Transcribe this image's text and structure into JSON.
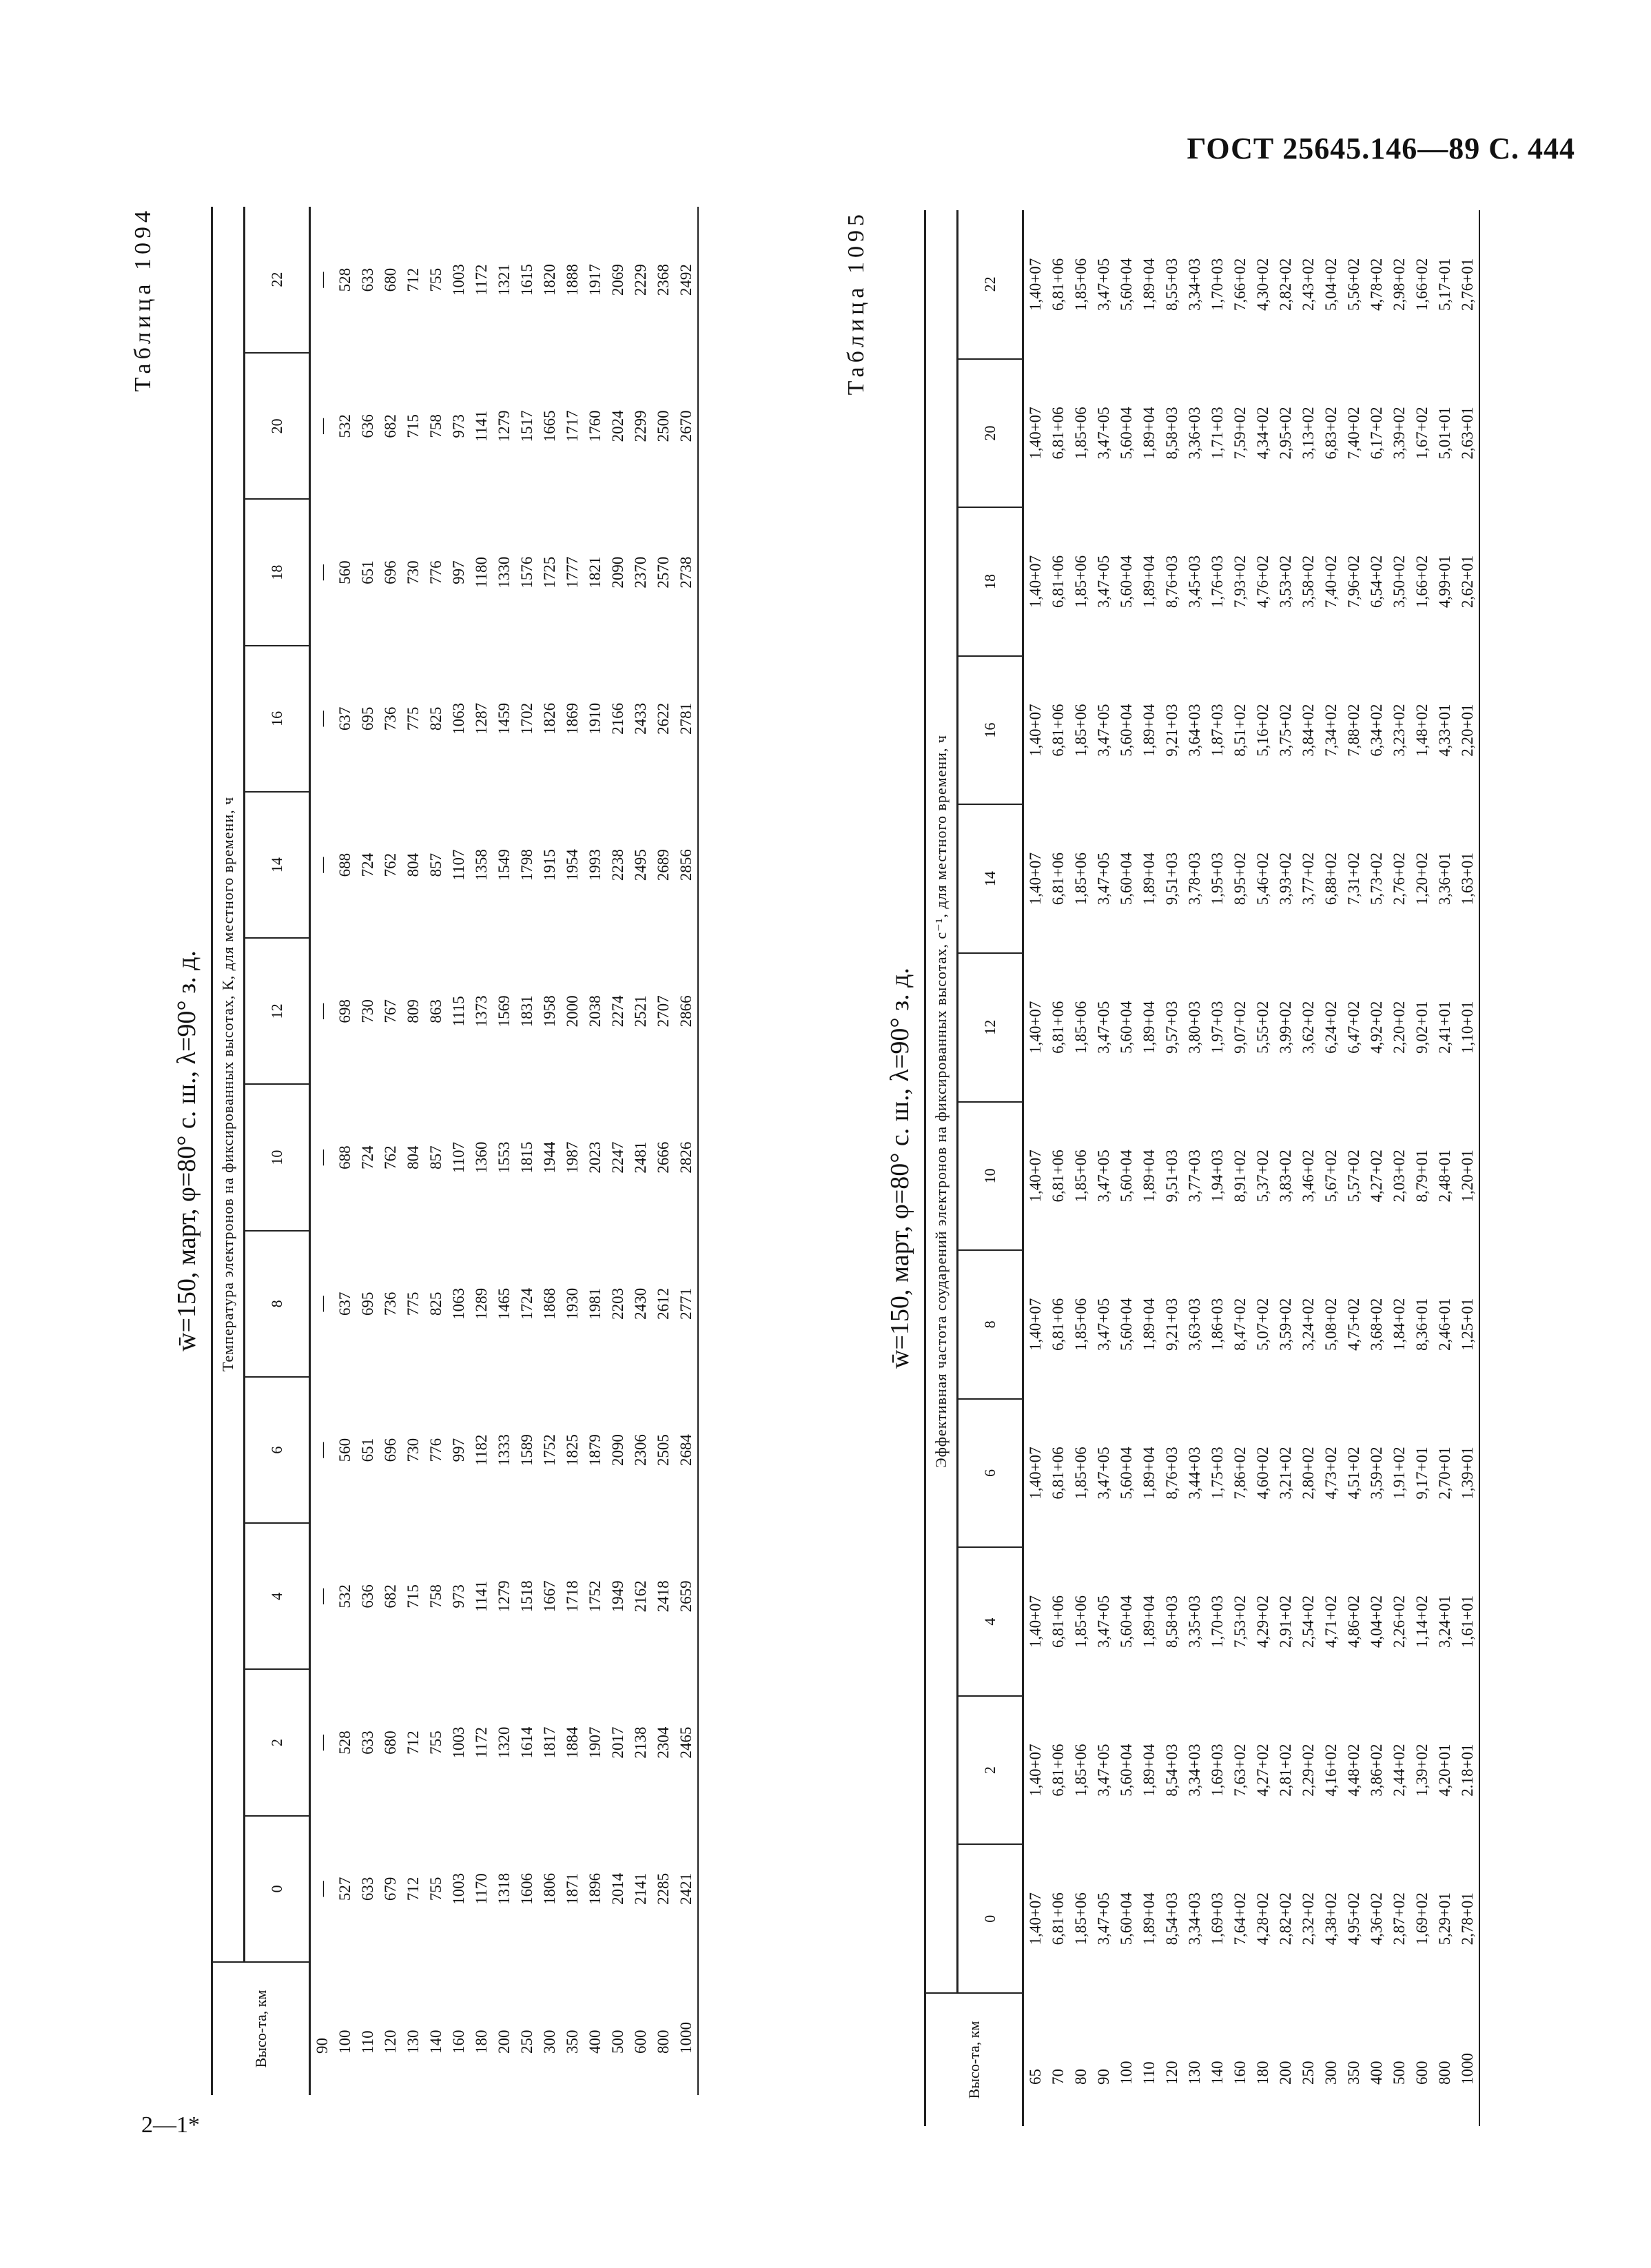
{
  "header": {
    "title": "ГОСТ 25645.146—89 С. 444"
  },
  "footer": {
    "text": "2—1*"
  },
  "tables": [
    {
      "caption": "Таблица 1094",
      "title": "w̄=150, март, φ=80° с. ш., λ=90° з. д.",
      "subtitle": "Температура электронов на фиксированных высотах, К, для местного времени, ч",
      "row_header": "Высо-та, км",
      "rows": [
        "90",
        "100",
        "110",
        "120",
        "130",
        "140",
        "160",
        "180",
        "200",
        "250",
        "300",
        "350",
        "400",
        "500",
        "600",
        "800",
        "1000"
      ],
      "columns": [
        {
          "header": "0",
          "values": [
            "—",
            "527",
            "633",
            "679",
            "712",
            "755",
            "1003",
            "1170",
            "1318",
            "1606",
            "1806",
            "1871",
            "1896",
            "2014",
            "2141",
            "2285",
            "2421"
          ]
        },
        {
          "header": "2",
          "values": [
            "—",
            "528",
            "633",
            "680",
            "712",
            "755",
            "1003",
            "1172",
            "1320",
            "1614",
            "1817",
            "1884",
            "1907",
            "2017",
            "2138",
            "2304",
            "2465"
          ]
        },
        {
          "header": "4",
          "values": [
            "—",
            "532",
            "636",
            "682",
            "715",
            "758",
            "973",
            "1141",
            "1279",
            "1518",
            "1667",
            "1718",
            "1752",
            "1949",
            "2162",
            "2418",
            "2659"
          ]
        },
        {
          "header": "6",
          "values": [
            "—",
            "560",
            "651",
            "696",
            "730",
            "776",
            "997",
            "1182",
            "1333",
            "1589",
            "1752",
            "1825",
            "1879",
            "2090",
            "2306",
            "2505",
            "2684"
          ]
        },
        {
          "header": "8",
          "values": [
            "—",
            "637",
            "695",
            "736",
            "775",
            "825",
            "1063",
            "1289",
            "1465",
            "1724",
            "1868",
            "1930",
            "1981",
            "2203",
            "2430",
            "2612",
            "2771"
          ]
        },
        {
          "header": "10",
          "values": [
            "—",
            "688",
            "724",
            "762",
            "804",
            "857",
            "1107",
            "1360",
            "1553",
            "1815",
            "1944",
            "1987",
            "2023",
            "2247",
            "2481",
            "2666",
            "2826"
          ]
        },
        {
          "header": "12",
          "values": [
            "—",
            "698",
            "730",
            "767",
            "809",
            "863",
            "1115",
            "1373",
            "1569",
            "1831",
            "1958",
            "2000",
            "2038",
            "2274",
            "2521",
            "2707",
            "2866"
          ]
        },
        {
          "header": "14",
          "values": [
            "—",
            "688",
            "724",
            "762",
            "804",
            "857",
            "1107",
            "1358",
            "1549",
            "1798",
            "1915",
            "1954",
            "1993",
            "2238",
            "2495",
            "2689",
            "2856"
          ]
        },
        {
          "header": "16",
          "values": [
            "—",
            "637",
            "695",
            "736",
            "775",
            "825",
            "1063",
            "1287",
            "1459",
            "1702",
            "1826",
            "1869",
            "1910",
            "2166",
            "2433",
            "2622",
            "2781"
          ]
        },
        {
          "header": "18",
          "values": [
            "—",
            "560",
            "651",
            "696",
            "730",
            "776",
            "997",
            "1180",
            "1330",
            "1576",
            "1725",
            "1777",
            "1821",
            "2090",
            "2370",
            "2570",
            "2738"
          ]
        },
        {
          "header": "20",
          "values": [
            "—",
            "532",
            "636",
            "682",
            "715",
            "758",
            "973",
            "1141",
            "1279",
            "1517",
            "1665",
            "1717",
            "1760",
            "2024",
            "2299",
            "2500",
            "2670"
          ]
        },
        {
          "header": "22",
          "values": [
            "—",
            "528",
            "633",
            "680",
            "712",
            "755",
            "1003",
            "1172",
            "1321",
            "1615",
            "1820",
            "1888",
            "1917",
            "2069",
            "2229",
            "2368",
            "2492"
          ]
        }
      ]
    },
    {
      "caption": "Таблица 1095",
      "title": "w̄=150, март, φ=80° с. ш., λ=90° з. д.",
      "subtitle": "Эффективная частота соударений электронов на фиксированных высотах, с⁻¹, для местного времени, ч",
      "row_header": "Высо-та, км",
      "rows": [
        "65",
        "70",
        "80",
        "90",
        "100",
        "110",
        "120",
        "130",
        "140",
        "160",
        "180",
        "200",
        "250",
        "300",
        "350",
        "400",
        "500",
        "600",
        "800",
        "1000"
      ],
      "columns": [
        {
          "header": "0",
          "values": [
            "1,40+07",
            "6,81+06",
            "1,85+06",
            "3,47+05",
            "5,60+04",
            "1,89+04",
            "8,54+03",
            "3,34+03",
            "1,69+03",
            "7,64+02",
            "4,28+02",
            "2,82+02",
            "2,32+02",
            "4,38+02",
            "4,95+02",
            "4,36+02",
            "2,87+02",
            "1,69+02",
            "5,29+01",
            "2,78+01"
          ]
        },
        {
          "header": "2",
          "values": [
            "1,40+07",
            "6,81+06",
            "1,85+06",
            "3,47+05",
            "5,60+04",
            "1,89+04",
            "8,54+03",
            "3,34+03",
            "1,69+03",
            "7,63+02",
            "4,27+02",
            "2,81+02",
            "2,29+02",
            "4,16+02",
            "4,48+02",
            "3,86+02",
            "2,44+02",
            "1,39+02",
            "4,20+01",
            "2.18+01"
          ]
        },
        {
          "header": "4",
          "values": [
            "1,40+07",
            "6,81+06",
            "1,85+06",
            "3,47+05",
            "5,60+04",
            "1,89+04",
            "8,58+03",
            "3,35+03",
            "1,70+03",
            "7,53+02",
            "4,29+02",
            "2,91+02",
            "2,54+02",
            "4,71+02",
            "4,86+02",
            "4,04+02",
            "2,26+02",
            "1,14+02",
            "3,24+01",
            "1,61+01"
          ]
        },
        {
          "header": "6",
          "values": [
            "1,40+07",
            "6,81+06",
            "1,85+06",
            "3,47+05",
            "5,60+04",
            "1,89+04",
            "8,76+03",
            "3,44+03",
            "1,75+03",
            "7,86+02",
            "4,60+02",
            "3,21+02",
            "2,80+02",
            "4,73+02",
            "4,51+02",
            "3,59+02",
            "1,91+02",
            "9,17+01",
            "2,70+01",
            "1,39+01"
          ]
        },
        {
          "header": "8",
          "values": [
            "1,40+07",
            "6,81+06",
            "1,85+06",
            "3,47+05",
            "5,60+04",
            "1,89+04",
            "9,21+03",
            "3,63+03",
            "1,86+03",
            "8,47+02",
            "5,07+02",
            "3,59+02",
            "3,24+02",
            "5,08+02",
            "4,75+02",
            "3,68+02",
            "1,84+02",
            "8,36+01",
            "2,46+01",
            "1,25+01"
          ]
        },
        {
          "header": "10",
          "values": [
            "1,40+07",
            "6,81+06",
            "1,85+06",
            "3,47+05",
            "5,60+04",
            "1,89+04",
            "9,51+03",
            "3,77+03",
            "1,94+03",
            "8,91+02",
            "5,37+02",
            "3,83+02",
            "3,46+02",
            "5,67+02",
            "5,57+02",
            "4,27+02",
            "2,03+02",
            "8,79+01",
            "2,48+01",
            "1,20+01"
          ]
        },
        {
          "header": "12",
          "values": [
            "1,40+07",
            "6,81+06",
            "1,85+06",
            "3,47+05",
            "5,60+04",
            "1,89+04",
            "9,57+03",
            "3,80+03",
            "1,97+03",
            "9,07+02",
            "5,55+02",
            "3,99+02",
            "3,62+02",
            "6,24+02",
            "6,47+02",
            "4,92+02",
            "2,20+02",
            "9,02+01",
            "2,41+01",
            "1,10+01"
          ]
        },
        {
          "header": "14",
          "values": [
            "1,40+07",
            "6,81+06",
            "1,85+06",
            "3,47+05",
            "5,60+04",
            "1,89+04",
            "9,51+03",
            "3,78+03",
            "1,95+03",
            "8,95+02",
            "5,46+02",
            "3,93+02",
            "3,77+02",
            "6,88+02",
            "7,31+02",
            "5,73+02",
            "2,76+02",
            "1,20+02",
            "3,36+01",
            "1,63+01"
          ]
        },
        {
          "header": "16",
          "values": [
            "1,40+07",
            "6,81+06",
            "1,85+06",
            "3,47+05",
            "5,60+04",
            "1,89+04",
            "9,21+03",
            "3,64+03",
            "1,87+03",
            "8,51+02",
            "5,16+02",
            "3,75+02",
            "3,84+02",
            "7,34+02",
            "7,88+02",
            "6,34+02",
            "3,23+02",
            "1,48+02",
            "4,33+01",
            "2,20+01"
          ]
        },
        {
          "header": "18",
          "values": [
            "1,40+07",
            "6,81+06",
            "1,85+06",
            "3,47+05",
            "5,60+04",
            "1,89+04",
            "8,76+03",
            "3,45+03",
            "1,76+03",
            "7,93+02",
            "4,76+02",
            "3,53+02",
            "3,58+02",
            "7,40+02",
            "7,96+02",
            "6,54+02",
            "3,50+02",
            "1,66+02",
            "4,99+01",
            "2,62+01"
          ]
        },
        {
          "header": "20",
          "values": [
            "1,40+07",
            "6,81+06",
            "1,85+06",
            "3,47+05",
            "5,60+04",
            "1,89+04",
            "8,58+03",
            "3,36+03",
            "1,71+03",
            "7,59+02",
            "4,34+02",
            "2,95+02",
            "3,13+02",
            "6,83+02",
            "7,40+02",
            "6,17+02",
            "3,39+02",
            "1,67+02",
            "5,01+01",
            "2,63+01"
          ]
        },
        {
          "header": "22",
          "values": [
            "1,40+07",
            "6,81+06",
            "1,85+06",
            "3,47+05",
            "5,60+04",
            "1,89+04",
            "8,55+03",
            "3,34+03",
            "1,70+03",
            "7,66+02",
            "4,30+02",
            "2,82+02",
            "2,43+02",
            "5,04+02",
            "5,56+02",
            "4,78+02",
            "2,98+02",
            "1,66+02",
            "5,17+01",
            "2,76+01"
          ]
        }
      ]
    }
  ]
}
